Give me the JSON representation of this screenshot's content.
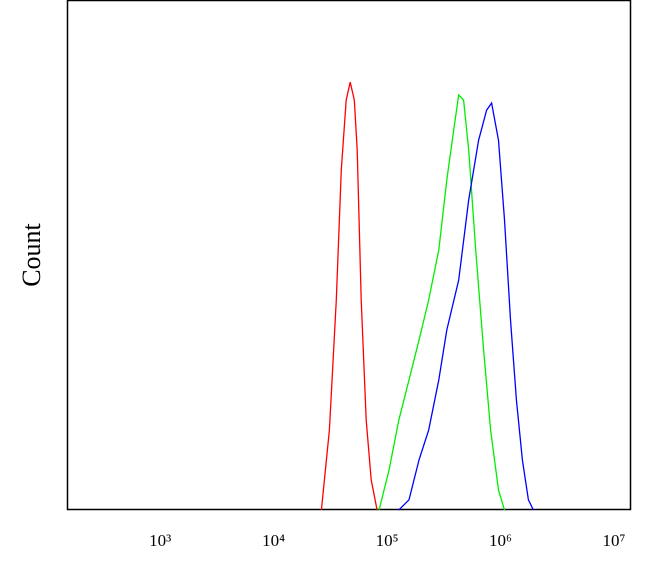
{
  "chart_data": {
    "type": "line",
    "ylabel": "Count",
    "xscale": "log",
    "xlim": [
      151,
      14125000
    ],
    "xticks": [
      {
        "value": 1000,
        "label": "10³"
      },
      {
        "value": 10000,
        "label": "10⁴"
      },
      {
        "value": 100000,
        "label": "10⁵"
      },
      {
        "value": 1000000,
        "label": "10⁶"
      },
      {
        "value": 10000000,
        "label": "10⁷"
      }
    ],
    "ylim": [
      0,
      100
    ],
    "series": [
      {
        "color": "#ff0000",
        "x": [
          26400,
          31000,
          35700,
          39500,
          43600,
          47300,
          51400,
          54600,
          59200,
          65500,
          72400,
          81700
        ],
        "values": [
          0,
          15.7,
          41.2,
          66.7,
          80.4,
          83.9,
          80.4,
          70.6,
          41.2,
          17.6,
          5.9,
          0
        ]
      },
      {
        "color": "#00ee00",
        "x": [
          85100,
          104000,
          127000,
          156000,
          191000,
          233000,
          286000,
          336000,
          387000,
          428000,
          473000,
          524000,
          604000,
          710000,
          817000,
          960000,
          1084000
        ],
        "values": [
          0,
          7.8,
          17.6,
          25.5,
          33.3,
          41.2,
          51,
          64.7,
          74.5,
          81.4,
          80.4,
          70.6,
          51,
          31.4,
          15.7,
          3.9,
          0
        ]
      },
      {
        "color": "#0000ff",
        "x": [
          127000,
          156000,
          191000,
          233000,
          286000,
          336000,
          428000,
          524000,
          641000,
          754000,
          834000,
          960000,
          1084000,
          1224000,
          1381000,
          1560000,
          1762000,
          1947000
        ],
        "values": [
          0,
          2,
          9.8,
          15.7,
          25.5,
          35.3,
          45.1,
          60.8,
          72.5,
          78.4,
          79.8,
          72.5,
          56.9,
          37.3,
          21.6,
          9.8,
          2,
          0
        ]
      }
    ]
  }
}
